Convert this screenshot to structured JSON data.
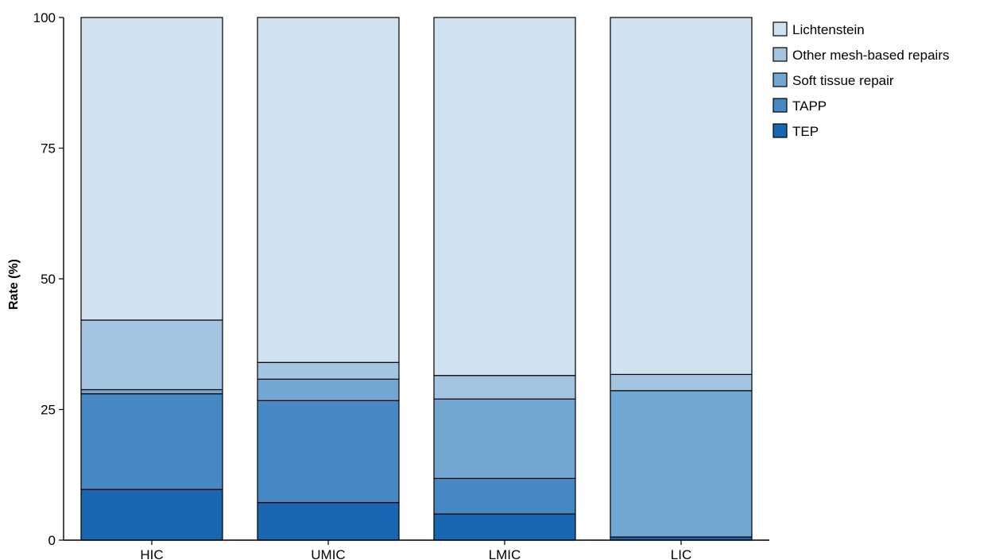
{
  "chart_data": {
    "type": "bar",
    "stacked": true,
    "title": "",
    "xlabel": "",
    "ylabel": "Rate (%)",
    "ylim": [
      0,
      100
    ],
    "yticks": [
      0,
      25,
      50,
      75,
      100
    ],
    "grid": false,
    "legend_position": "top-right",
    "categories": [
      "HIC",
      "UMIC",
      "LMIC",
      "LIC"
    ],
    "series": [
      {
        "name": "TEP",
        "color": "#1967b0",
        "values": [
          9.7,
          7.2,
          5.0,
          0.6
        ]
      },
      {
        "name": "TAPP",
        "color": "#4588c4",
        "values": [
          18.3,
          19.5,
          6.8,
          0.0
        ]
      },
      {
        "name": "Soft tissue repair",
        "color": "#72a7d2",
        "values": [
          0.8,
          4.1,
          15.2,
          28.0
        ]
      },
      {
        "name": "Other mesh-based repairs",
        "color": "#a4c5e2",
        "values": [
          13.3,
          3.2,
          4.5,
          3.1
        ]
      },
      {
        "name": "Lichtenstein",
        "color": "#d0e1ef",
        "values": [
          57.9,
          66.0,
          68.5,
          68.3
        ]
      }
    ],
    "legend_order": [
      "Lichtenstein",
      "Other mesh-based repairs",
      "Soft tissue repair",
      "TAPP",
      "TEP"
    ]
  }
}
